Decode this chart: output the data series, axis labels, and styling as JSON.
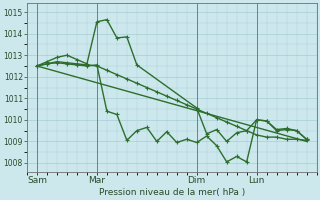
{
  "xlabel": "Pression niveau de la mer( hPa )",
  "background_color": "#cce8ec",
  "grid_color": "#a8cdd4",
  "line_color": "#2d6e2d",
  "ylim": [
    1007.6,
    1015.4
  ],
  "yticks": [
    1008,
    1009,
    1010,
    1011,
    1012,
    1013,
    1014,
    1015
  ],
  "day_labels": [
    "Sam",
    "Mar",
    "Dim",
    "Lun"
  ],
  "day_positions": [
    0,
    6,
    16,
    22
  ],
  "vline_positions": [
    0,
    6,
    16,
    22
  ],
  "xlim": [
    -1,
    28
  ],
  "series1_x": [
    0,
    1,
    2,
    3,
    4,
    5,
    6,
    7,
    8,
    9,
    10,
    11,
    12,
    13,
    14,
    15,
    16,
    17,
    18,
    19,
    20,
    21,
    22,
    23,
    24,
    25,
    26,
    27
  ],
  "series1": [
    1012.5,
    1012.6,
    1012.7,
    1012.65,
    1012.6,
    1012.55,
    1012.5,
    1012.3,
    1012.1,
    1011.9,
    1011.7,
    1011.5,
    1011.3,
    1011.1,
    1010.9,
    1010.7,
    1010.5,
    1010.3,
    1010.1,
    1009.9,
    1009.7,
    1009.5,
    1009.3,
    1009.2,
    1009.2,
    1009.1,
    1009.1,
    1009.05
  ],
  "series2_x": [
    0,
    1,
    2,
    3,
    4,
    5,
    6,
    7,
    8,
    9,
    10,
    16,
    17,
    18,
    19,
    20,
    21,
    22,
    23,
    24,
    25,
    26,
    27
  ],
  "series2": [
    1012.5,
    1012.7,
    1012.9,
    1013.0,
    1012.8,
    1012.6,
    1014.55,
    1014.65,
    1013.8,
    1013.85,
    1012.55,
    1010.55,
    1009.35,
    1009.55,
    1009.0,
    1009.4,
    1009.5,
    1010.0,
    1009.95,
    1009.55,
    1009.6,
    1009.5,
    1009.1
  ],
  "series3_x": [
    0,
    1,
    2,
    3,
    4,
    5,
    6,
    7,
    8,
    9,
    10,
    11,
    12,
    13,
    14,
    15,
    16,
    17,
    18,
    19,
    20,
    21,
    22,
    23,
    24,
    25,
    26,
    27
  ],
  "series3": [
    1012.5,
    1012.6,
    1012.65,
    1012.6,
    1012.55,
    1012.5,
    1012.55,
    1010.4,
    1010.25,
    1009.05,
    1009.5,
    1009.65,
    1009.0,
    1009.45,
    1008.95,
    1009.1,
    1008.95,
    1009.25,
    1008.8,
    1008.05,
    1008.3,
    1008.05,
    1010.0,
    1009.95,
    1009.5,
    1009.55,
    1009.5,
    1009.1
  ],
  "series4_x": [
    0,
    27
  ],
  "series4": [
    1012.5,
    1009.0
  ]
}
